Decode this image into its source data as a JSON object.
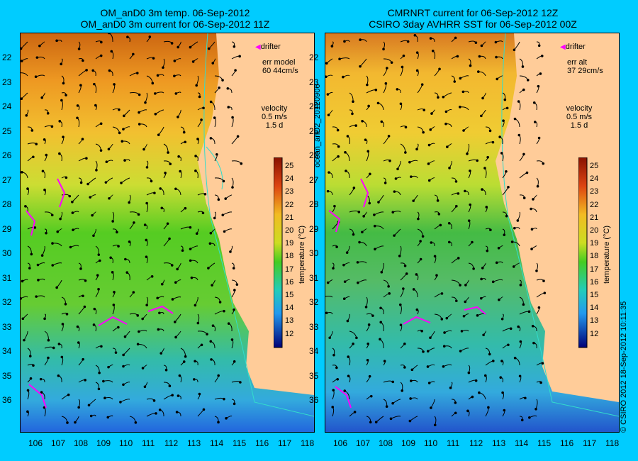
{
  "left": {
    "title_line1": "OM_anD0 3m temp. 06-Sep-2012",
    "title_line2": "OM_anD0 3m current for 06-Sep-2012 11Z",
    "drifter_label": "drifter",
    "err_line1": "err model",
    "err_line2": "60 44cm/s",
    "velocity_line1": "velocity",
    "velocity_line2": "0.5 m/s",
    "velocity_line3": "1.5 d"
  },
  "right": {
    "title_line1": "CMRNRT current for 06-Sep-2012 12Z",
    "title_line2": "CSIRO 3day AVHRR SST for 06-Sep-2012 00Z",
    "drifter_label": "drifter",
    "err_line1": "err alt",
    "err_line2": "37 29cm/s",
    "velocity_line1": "velocity",
    "velocity_line2": "0.5 m/s",
    "velocity_line3": "1.5 d"
  },
  "axes": {
    "y_ticks": [
      "22",
      "23",
      "24",
      "25",
      "26",
      "27",
      "28",
      "29",
      "30",
      "31",
      "32",
      "33",
      "34",
      "35",
      "36"
    ],
    "x_ticks": [
      "106",
      "107",
      "108",
      "109",
      "110",
      "111",
      "112",
      "113",
      "114",
      "115",
      "116",
      "117",
      "118"
    ]
  },
  "colorbar": {
    "label": "temperature (°C)",
    "ticks": [
      "25",
      "24",
      "23",
      "22",
      "21",
      "20",
      "19",
      "18",
      "17",
      "16",
      "15",
      "14",
      "13",
      "12"
    ]
  },
  "side": {
    "product_id": "ocean_anD2_20120906",
    "credit": "© CSIRO 2012   18-Sep-2012 10:11:35"
  },
  "colors": {
    "background": "#00ccff",
    "land": "#ffcc99",
    "drifter": "#ff00ff",
    "warm": "#cc5500",
    "cool": "#2266dd"
  }
}
